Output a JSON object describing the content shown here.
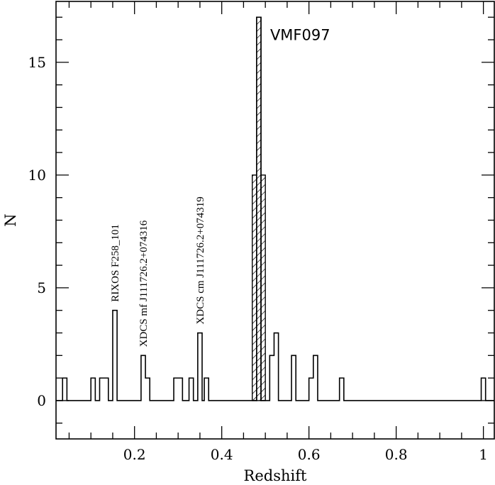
{
  "chart_data": {
    "type": "histogram",
    "xlabel": "Redshift",
    "ylabel": "N",
    "xlim": [
      0.02,
      1.025
    ],
    "ylim": [
      -1.7,
      17.7
    ],
    "xticks": [
      0.2,
      0.4,
      0.6,
      0.8,
      1
    ],
    "xtick_labels": [
      "0.2",
      "0.4",
      "0.6",
      "0.8",
      "1"
    ],
    "yticks": [
      0,
      5,
      10,
      15
    ],
    "ytick_labels": [
      "0",
      "5",
      "10",
      "15"
    ],
    "grid": false,
    "bin_width": 0.01,
    "series": [
      {
        "style": "step-outline",
        "bins": [
          {
            "z": 0.04,
            "n": 1
          },
          {
            "z": 0.105,
            "n": 1
          },
          {
            "z": 0.125,
            "n": 1
          },
          {
            "z": 0.135,
            "n": 1
          },
          {
            "z": 0.155,
            "n": 4
          },
          {
            "z": 0.22,
            "n": 2
          },
          {
            "z": 0.23,
            "n": 1
          },
          {
            "z": 0.295,
            "n": 1
          },
          {
            "z": 0.305,
            "n": 1
          },
          {
            "z": 0.33,
            "n": 1
          },
          {
            "z": 0.35,
            "n": 3
          },
          {
            "z": 0.365,
            "n": 1
          },
          {
            "z": 0.485,
            "n": 17
          },
          {
            "z": 0.515,
            "n": 2
          },
          {
            "z": 0.525,
            "n": 3
          },
          {
            "z": 0.565,
            "n": 2
          },
          {
            "z": 0.605,
            "n": 1
          },
          {
            "z": 0.615,
            "n": 2
          },
          {
            "z": 0.675,
            "n": 1
          },
          {
            "z": 1.0,
            "n": 1
          }
        ]
      },
      {
        "style": "hatched",
        "bins": [
          {
            "z": 0.485,
            "n": 17
          },
          {
            "z": 0.475,
            "n": 10
          },
          {
            "z": 0.495,
            "n": 10
          }
        ]
      }
    ],
    "annotations": [
      {
        "id": "rixos",
        "text": "RIXOS F258_101",
        "z": 0.155,
        "n": 4,
        "rotation": -90
      },
      {
        "id": "xdcs-mf",
        "text": "XDCS mf J111726.2+074316",
        "z": 0.22,
        "n": 2,
        "rotation": -90
      },
      {
        "id": "xdcs-cm",
        "text": "XDCS cm J111726.2+074319",
        "z": 0.35,
        "n": 3,
        "rotation": -90
      },
      {
        "id": "vmf097",
        "text": "VMF097",
        "z": 0.485,
        "n": 17,
        "rotation": 0
      }
    ]
  }
}
